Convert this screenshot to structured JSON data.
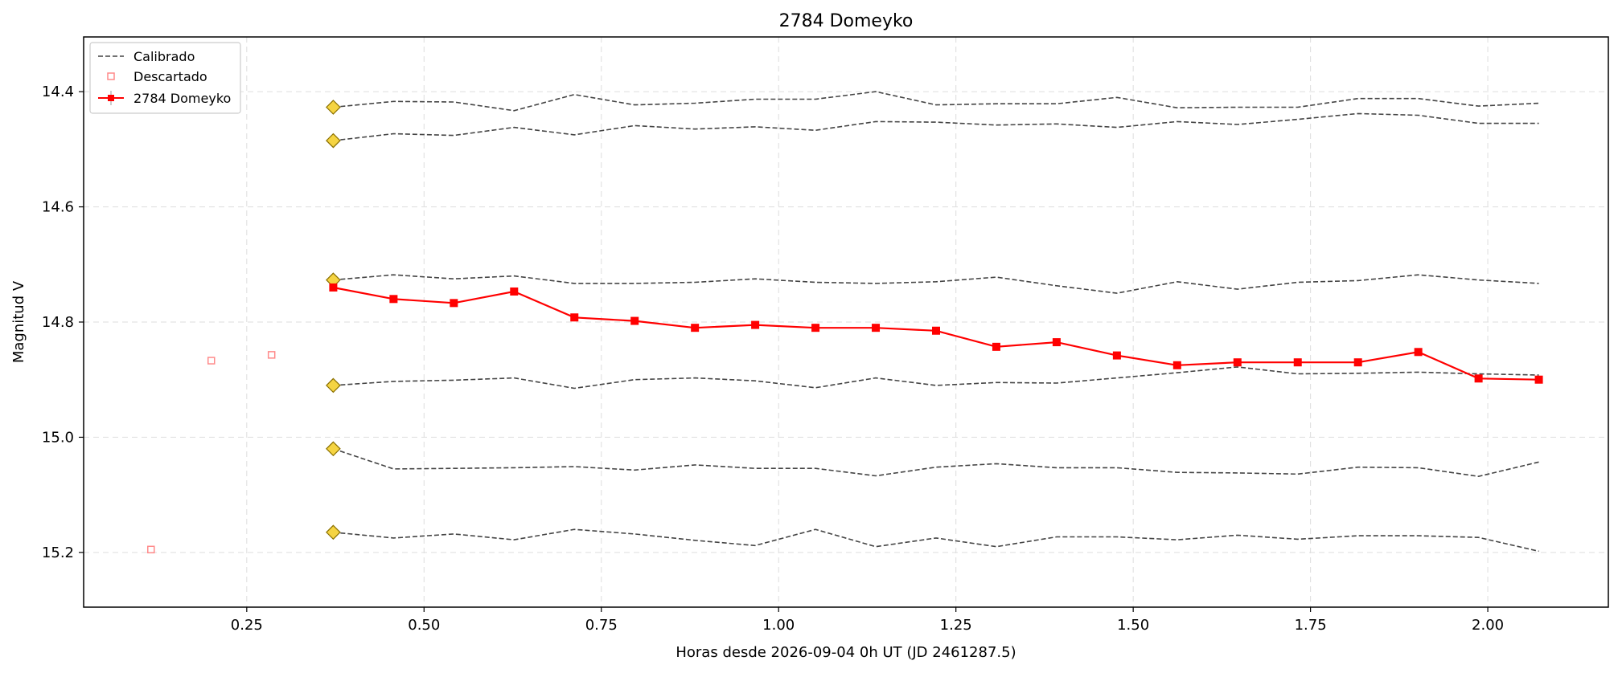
{
  "chart_data": {
    "type": "line",
    "title": "2784 Domeyko",
    "xlabel": "Horas desde 2026-09-04 0h UT (JD 2461287.5)",
    "ylabel": "Magnitud V",
    "xlim": [
      0.02,
      2.17
    ],
    "ylim": [
      15.295,
      14.305
    ],
    "y_inverted": true,
    "grid": true,
    "legend_position": "top-left",
    "xticks": [
      0.25,
      0.5,
      0.75,
      1.0,
      1.25,
      1.5,
      1.75,
      2.0
    ],
    "xtick_labels": [
      "0.25",
      "0.50",
      "0.75",
      "1.00",
      "1.25",
      "1.50",
      "1.75",
      "2.00"
    ],
    "yticks": [
      14.4,
      14.6,
      14.8,
      15.0,
      15.2
    ],
    "ytick_labels": [
      "14.4",
      "14.6",
      "14.8",
      "15.0",
      "15.2"
    ],
    "legend": [
      "Calibrado",
      "Descartado",
      "2784 Domeyko"
    ],
    "colors": {
      "target": "#ff0000",
      "calibrado": "#444444",
      "descartado": "#ff8a8a",
      "comparison_marker_fill": "#f5d442",
      "comparison_marker_edge": "#8a7000",
      "grid": "#dddddd"
    },
    "x": [
      0.372,
      0.457,
      0.542,
      0.627,
      0.712,
      0.797,
      0.882,
      0.967,
      1.052,
      1.137,
      1.222,
      1.307,
      1.392,
      1.477,
      1.562,
      1.647,
      1.732,
      1.817,
      1.902,
      1.987,
      2.072
    ],
    "target_series": {
      "name": "2784 Domeyko",
      "values": [
        14.74,
        14.76,
        14.767,
        14.747,
        14.792,
        14.798,
        14.81,
        14.805,
        14.81,
        14.81,
        14.815,
        14.843,
        14.835,
        14.858,
        14.875,
        14.87,
        14.87,
        14.87,
        14.852,
        14.898,
        14.9
      ]
    },
    "comparison_series": [
      {
        "values": [
          14.427,
          14.417,
          14.418,
          14.433,
          14.405,
          14.423,
          14.42,
          14.413,
          14.413,
          14.4,
          14.423,
          14.421,
          14.421,
          14.41,
          14.428,
          14.427,
          14.427,
          14.412,
          14.412,
          14.425,
          14.42
        ]
      },
      {
        "values": [
          14.485,
          14.473,
          14.476,
          14.462,
          14.475,
          14.459,
          14.465,
          14.461,
          14.467,
          14.452,
          14.453,
          14.458,
          14.456,
          14.462,
          14.452,
          14.457,
          14.448,
          14.438,
          14.441,
          14.455,
          14.455
        ]
      },
      {
        "values": [
          14.727,
          14.718,
          14.725,
          14.72,
          14.733,
          14.733,
          14.731,
          14.725,
          14.731,
          14.733,
          14.73,
          14.722,
          14.737,
          14.75,
          14.73,
          14.743,
          14.731,
          14.728,
          14.718,
          14.727,
          14.733
        ]
      },
      {
        "values": [
          14.91,
          14.903,
          14.901,
          14.897,
          14.915,
          14.9,
          14.897,
          14.902,
          14.914,
          14.897,
          14.91,
          14.905,
          14.906,
          14.897,
          14.888,
          14.878,
          14.89,
          14.889,
          14.887,
          14.89,
          14.892
        ]
      },
      {
        "values": [
          15.02,
          15.055,
          15.054,
          15.053,
          15.051,
          15.057,
          15.048,
          15.054,
          15.054,
          15.067,
          15.052,
          15.046,
          15.053,
          15.053,
          15.061,
          15.062,
          15.064,
          15.052,
          15.053,
          15.068,
          15.043
        ]
      },
      {
        "values": [
          15.165,
          15.175,
          15.168,
          15.178,
          15.16,
          15.168,
          15.179,
          15.188,
          15.16,
          15.19,
          15.175,
          15.19,
          15.173,
          15.173,
          15.178,
          15.17,
          15.177,
          15.171,
          15.171,
          15.174,
          15.198
        ]
      }
    ],
    "discarded_points": [
      {
        "x": 0.115,
        "y": 15.195
      },
      {
        "x": 0.2,
        "y": 14.867
      },
      {
        "x": 0.285,
        "y": 14.857
      }
    ]
  }
}
